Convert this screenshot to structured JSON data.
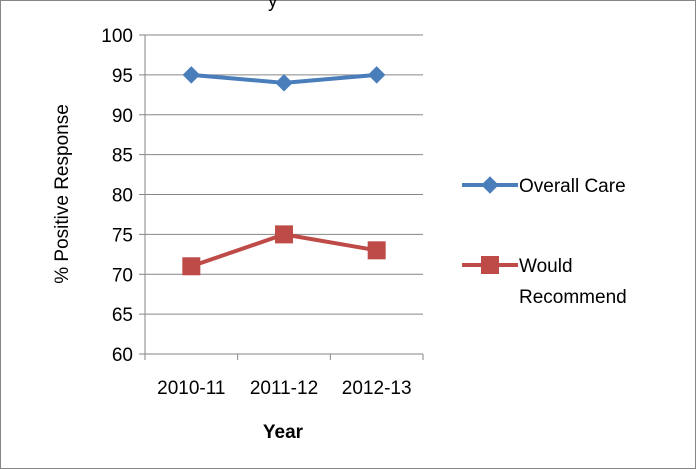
{
  "chart_data": {
    "type": "line",
    "title_fragment": "y",
    "categories": [
      "2010-11",
      "2011-12",
      "2012-13"
    ],
    "series": [
      {
        "name": "Overall Care",
        "values": [
          95,
          94,
          95
        ],
        "color": "#4a7ebb",
        "marker": "diamond"
      },
      {
        "name": "Would Recommend",
        "values": [
          71,
          75,
          73
        ],
        "color": "#be4b48",
        "marker": "square"
      }
    ],
    "xlabel": "Year",
    "ylabel": "% Positive Response",
    "ylim": [
      60,
      100
    ],
    "yticks": [
      "60",
      "65",
      "70",
      "75",
      "80",
      "85",
      "90",
      "95",
      "100"
    ],
    "grid": true,
    "legend_position": "right"
  }
}
